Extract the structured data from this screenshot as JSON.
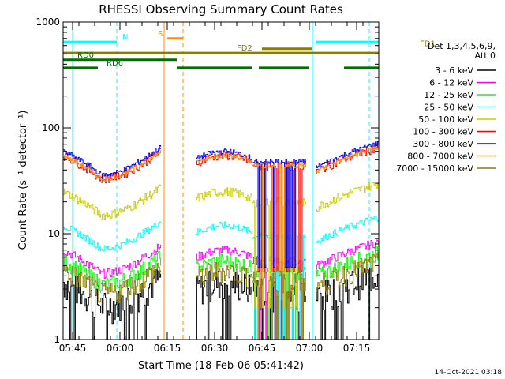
{
  "chart_data": {
    "type": "line",
    "title": "RHESSI Observing Summary Count Rates",
    "xlabel": "Start Time (18-Feb-06 05:41:42)",
    "ylabel": "Count Rate (s⁻¹ detector⁻¹)",
    "yscale": "log",
    "ylim": [
      1,
      1000
    ],
    "xlim_minutes": [
      -3,
      97
    ],
    "x_ticks": [
      {
        "m": 0,
        "label": "05:45"
      },
      {
        "m": 15,
        "label": "06:00"
      },
      {
        "m": 30,
        "label": "06:15"
      },
      {
        "m": 45,
        "label": "06:30"
      },
      {
        "m": 60,
        "label": "06:45"
      },
      {
        "m": 75,
        "label": "07:00"
      },
      {
        "m": 90,
        "label": "07:15"
      }
    ],
    "y_ticks": [
      {
        "v": 1,
        "label": "1"
      },
      {
        "v": 10,
        "label": "10"
      },
      {
        "v": 100,
        "label": "100"
      },
      {
        "v": 1000,
        "label": "1000"
      }
    ],
    "legend_header": [
      "Det 1,3,4,5,6,9,",
      "Att 0"
    ],
    "legend_position": "right",
    "series": [
      {
        "name": "3 - 6 keV",
        "color": "#000000",
        "level": 3.5,
        "noise": 0.35
      },
      {
        "name": "6 - 12 keV",
        "color": "#ff00ff",
        "level": 7.0,
        "noise": 0.1
      },
      {
        "name": "12 - 25 keV",
        "color": "#00ff00",
        "level": 5.5,
        "noise": 0.18
      },
      {
        "name": "25 - 50 keV",
        "color": "#00ffff",
        "level": 12,
        "noise": 0.08
      },
      {
        "name": "50 - 100 keV",
        "color": "#cccc00",
        "level": 25,
        "noise": 0.1
      },
      {
        "name": "100 - 300 keV",
        "color": "#ff0000",
        "level": 55,
        "noise": 0.1
      },
      {
        "name": "300 - 800 keV",
        "color": "#0000ff",
        "level": 60,
        "noise": 0.06
      },
      {
        "name": "800 - 7000 keV",
        "color": "#ff8c00",
        "level": 55,
        "noise": 0.05
      },
      {
        "name": "7000 - 15000 keV",
        "color": "#8b7d00",
        "level": 4.5,
        "noise": 0.25
      }
    ],
    "flag_bars": [
      {
        "label": "N",
        "color": "#00ffff",
        "y": 650,
        "segments": [
          [
            -3,
            14
          ],
          [
            77,
            97
          ]
        ]
      },
      {
        "label": "S",
        "color": "#ff8c00",
        "y": 700,
        "segments": [
          [
            30,
            35
          ]
        ]
      },
      {
        "label": "FD1",
        "color": "#8b7d00",
        "y": 560,
        "segments": [
          [
            60,
            76
          ]
        ]
      },
      {
        "label": "FD2",
        "color": "#8b7d00",
        "y": 510,
        "segments": [
          [
            -3,
            97
          ]
        ]
      },
      {
        "label": "RD0",
        "color": "#007000",
        "y": 440,
        "segments": [
          [
            -3,
            33
          ]
        ]
      },
      {
        "label": "RD6",
        "color": "#007000",
        "y": 370,
        "segments": [
          [
            -3,
            8
          ],
          [
            33,
            57
          ],
          [
            59,
            75
          ],
          [
            86,
            97
          ]
        ]
      }
    ],
    "saa_lines_minutes": [
      0,
      14,
      76,
      94
    ],
    "night_lines_minutes": [
      29,
      35
    ]
  },
  "footer_timestamp": "14-Oct-2021 03:18"
}
